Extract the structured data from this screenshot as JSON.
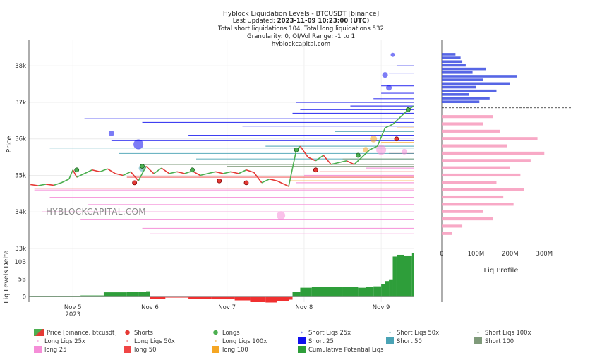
{
  "header": {
    "title": "Hyblock Liquidation Levels - BTCUSDT [binance]",
    "updated_prefix": "Last Updated: ",
    "updated_value": "2023-11-09 10:23:00 (UTC)",
    "totals": "Total short liquidations 104, Total long liquidations 532",
    "granularity": "Granularity: 0, OI/Vol Range: -1 to 1",
    "site": "hyblockcapital.com"
  },
  "watermark": "HYBLOCKCAPITAL.COM",
  "colors": {
    "price_up": "#4caf50",
    "price_down": "#e53935",
    "short25": "#1010ee",
    "short50": "#4aa3b5",
    "short100": "#7f9a7a",
    "long25": "#f58ed8",
    "long50": "#f04545",
    "long100": "#f5a623",
    "delta_pos": "#2e9e3a",
    "delta_neg": "#f03030",
    "profile_short": "#3a4be0",
    "profile_long": "#f7a0c0"
  },
  "chart_data": [
    {
      "type": "line",
      "name": "price",
      "title": "Hyblock Liquidation Levels - BTCUSDT [binance]",
      "ylabel": "Price",
      "ylim": [
        33000,
        38700
      ],
      "xlim": [
        -0.57,
        4.42
      ],
      "y_ticks": [
        33000,
        34000,
        35000,
        36000,
        37000,
        38000
      ],
      "y_tick_labels": [
        "33k",
        "34k",
        "35k",
        "36k",
        "37k",
        "38k"
      ],
      "x_ticks": [
        0,
        1,
        2,
        3,
        4
      ],
      "x_tick_labels": [
        "Nov 5",
        "Nov 6",
        "Nov 7",
        "Nov 8",
        "Nov 9"
      ],
      "x_year_label": "2023",
      "series": [
        {
          "name": "Price [binance, btcusdt]",
          "x": [
            -0.55,
            -0.45,
            -0.35,
            -0.25,
            -0.15,
            -0.05,
            0.0,
            0.05,
            0.15,
            0.25,
            0.35,
            0.45,
            0.55,
            0.65,
            0.75,
            0.85,
            0.95,
            1.05,
            1.15,
            1.25,
            1.35,
            1.45,
            1.55,
            1.65,
            1.75,
            1.85,
            1.95,
            2.05,
            2.15,
            2.25,
            2.35,
            2.45,
            2.55,
            2.65,
            2.75,
            2.8,
            2.85,
            2.9,
            2.95,
            3.05,
            3.15,
            3.25,
            3.35,
            3.45,
            3.55,
            3.65,
            3.75,
            3.85,
            3.95,
            4.05,
            4.15,
            4.25,
            4.35,
            4.42
          ],
          "y": [
            34750,
            34720,
            34760,
            34730,
            34800,
            34900,
            35150,
            34950,
            35050,
            35150,
            35100,
            35180,
            35050,
            35000,
            35100,
            34850,
            35250,
            35050,
            35200,
            35050,
            35100,
            35050,
            35120,
            35000,
            35050,
            35100,
            35050,
            35100,
            35050,
            35150,
            35080,
            34800,
            34900,
            34850,
            34750,
            34700,
            35200,
            35700,
            35800,
            35500,
            35400,
            35550,
            35300,
            35350,
            35400,
            35300,
            35500,
            35700,
            35800,
            36300,
            36400,
            36600,
            36800,
            36900
          ]
        }
      ],
      "short_levels": [
        {
          "bucket": "Short 25",
          "y": 36550,
          "x_start": 0.15
        },
        {
          "bucket": "Short 25",
          "y": 36450,
          "x_start": 0.9
        },
        {
          "bucket": "Short 25",
          "y": 36350,
          "x_start": 2.2
        },
        {
          "bucket": "Short 25",
          "y": 36100,
          "x_start": 1.5
        },
        {
          "bucket": "Short 25",
          "y": 35950,
          "x_start": 0.5
        },
        {
          "bucket": "Short 25",
          "y": 36700,
          "x_start": 2.85
        },
        {
          "bucket": "Short 25",
          "y": 36800,
          "x_start": 2.95
        },
        {
          "bucket": "Short 25",
          "y": 36900,
          "x_start": 3.6
        },
        {
          "bucket": "Short 25",
          "y": 37000,
          "x_start": 2.9
        },
        {
          "bucket": "Short 25",
          "y": 37100,
          "x_start": 3.9
        },
        {
          "bucket": "Short 25",
          "y": 37250,
          "x_start": 4.0
        },
        {
          "bucket": "Short 25",
          "y": 37450,
          "x_start": 4.0
        },
        {
          "bucket": "Short 25",
          "y": 37800,
          "x_start": 4.1
        },
        {
          "bucket": "Short 25",
          "y": 38000,
          "x_start": 4.2
        },
        {
          "bucket": "Short 50",
          "y": 35750,
          "x_start": -0.3
        },
        {
          "bucket": "Short 50",
          "y": 35600,
          "x_start": 0.6
        },
        {
          "bucket": "Short 50",
          "y": 35450,
          "x_start": 1.6
        },
        {
          "bucket": "Short 50",
          "y": 35800,
          "x_start": 2.5
        },
        {
          "bucket": "Short 50",
          "y": 36200,
          "x_start": 3.4
        },
        {
          "bucket": "Short 100",
          "y": 35300,
          "x_start": 0.9
        },
        {
          "bucket": "Short 100",
          "y": 35250,
          "x_start": 2.0
        }
      ],
      "long_levels": [
        {
          "bucket": "long 25",
          "y": 34600,
          "x_start": -0.5
        },
        {
          "bucket": "long 25",
          "y": 34400,
          "x_start": -0.3
        },
        {
          "bucket": "long 25",
          "y": 34200,
          "x_start": 0.2
        },
        {
          "bucket": "long 25",
          "y": 34000,
          "x_start": -0.4
        },
        {
          "bucket": "long 25",
          "y": 33800,
          "x_start": 0.1
        },
        {
          "bucket": "long 25",
          "y": 33550,
          "x_start": 0.9
        },
        {
          "bucket": "long 25",
          "y": 33400,
          "x_start": 1.0
        },
        {
          "bucket": "long 25",
          "y": 34800,
          "x_start": 2.9
        },
        {
          "bucket": "long 25",
          "y": 35000,
          "x_start": 3.0
        },
        {
          "bucket": "long 25",
          "y": 35200,
          "x_start": 3.8
        },
        {
          "bucket": "long 50",
          "y": 34650,
          "x_start": -0.5
        },
        {
          "bucket": "long 50",
          "y": 34950,
          "x_start": 0.7
        },
        {
          "bucket": "long 50",
          "y": 35100,
          "x_start": 3.2
        },
        {
          "bucket": "long 50",
          "y": 35600,
          "x_start": 4.1
        },
        {
          "bucket": "long 100",
          "y": 34850,
          "x_start": 2.8
        },
        {
          "bucket": "long 100",
          "y": 35450,
          "x_start": 3.5
        },
        {
          "bucket": "long 100",
          "y": 35900,
          "x_start": 4.0
        },
        {
          "bucket": "long 100",
          "y": 36300,
          "x_start": 4.2
        }
      ],
      "short_markers": [
        {
          "x": 1.9,
          "y": 34850,
          "size": 3
        },
        {
          "x": 2.25,
          "y": 34800,
          "size": 3
        },
        {
          "x": 0.8,
          "y": 34800,
          "size": 3
        },
        {
          "x": 3.15,
          "y": 35150,
          "size": 3
        },
        {
          "x": 4.2,
          "y": 36000,
          "size": 3
        }
      ],
      "long_markers": [
        {
          "x": 0.05,
          "y": 35150,
          "size": 3
        },
        {
          "x": 0.9,
          "y": 35250,
          "size": 3
        },
        {
          "x": 1.55,
          "y": 35150,
          "size": 3
        },
        {
          "x": 2.9,
          "y": 35700,
          "size": 3
        },
        {
          "x": 3.7,
          "y": 35550,
          "size": 3
        },
        {
          "x": 4.35,
          "y": 36800,
          "size": 3
        }
      ],
      "bubbles": [
        {
          "bucket": "Short 25",
          "x": 0.85,
          "y": 35850,
          "size": 7
        },
        {
          "bucket": "Short 25",
          "x": 0.5,
          "y": 36150,
          "size": 4
        },
        {
          "bucket": "Short 25",
          "x": 4.05,
          "y": 37750,
          "size": 4
        },
        {
          "bucket": "Short 25",
          "x": 4.1,
          "y": 37400,
          "size": 4
        },
        {
          "bucket": "Short 25",
          "x": 4.15,
          "y": 38300,
          "size": 3
        },
        {
          "bucket": "Short 50",
          "x": 0.9,
          "y": 35200,
          "size": 5
        },
        {
          "bucket": "long 25",
          "x": 2.7,
          "y": 33900,
          "size": 6
        },
        {
          "bucket": "long 25",
          "x": 4.0,
          "y": 35700,
          "size": 7
        },
        {
          "bucket": "long 25",
          "x": 4.3,
          "y": 35650,
          "size": 4
        },
        {
          "bucket": "long 100",
          "x": 3.9,
          "y": 36000,
          "size": 5
        },
        {
          "bucket": "long 100",
          "x": 3.8,
          "y": 35700,
          "size": 4
        }
      ]
    },
    {
      "type": "area",
      "name": "delta",
      "ylabel": "Liq Levels Delta",
      "ylim": [
        -1500000000,
        13000000000
      ],
      "y_ticks": [
        0,
        5000000000,
        10000000000
      ],
      "y_tick_labels": [
        "0",
        "5B",
        "10B"
      ],
      "series": [
        {
          "name": "Cumulative Potential Liqs",
          "x": [
            -0.55,
            -0.2,
            0.1,
            0.4,
            0.7,
            0.85,
            0.95,
            1.0,
            1.2,
            1.5,
            1.8,
            2.1,
            2.3,
            2.5,
            2.65,
            2.8,
            2.85,
            2.95,
            3.1,
            3.3,
            3.5,
            3.7,
            3.8,
            3.9,
            4.0,
            4.05,
            4.1,
            4.15,
            4.2,
            4.3,
            4.4
          ],
          "y": [
            200000000,
            250000000,
            400000000,
            1300000000,
            1400000000,
            1500000000,
            1600000000,
            -500000000,
            -200000000,
            -600000000,
            -700000000,
            -1000000000,
            -1500000000,
            -1600000000,
            -1300000000,
            -800000000,
            1500000000,
            2600000000,
            2800000000,
            2900000000,
            2800000000,
            2600000000,
            2900000000,
            3000000000,
            3600000000,
            4500000000,
            5000000000,
            11500000000,
            12000000000,
            11800000000,
            12400000000
          ]
        }
      ]
    },
    {
      "type": "bar",
      "name": "profile",
      "xlabel": "Liq Profile",
      "xlim": [
        0,
        380000000
      ],
      "x_ticks": [
        0,
        100000000,
        200000000,
        300000000
      ],
      "x_tick_labels": [
        "0",
        "100M",
        "200M",
        "300M"
      ],
      "current_price": 36850,
      "series": [
        {
          "name": "short",
          "price": [
            37000,
            37100,
            37200,
            37300,
            37400,
            37500,
            37600,
            37700,
            37800,
            37900,
            38000,
            38100,
            38200,
            38300
          ],
          "value": [
            110000000,
            140000000,
            80000000,
            160000000,
            100000000,
            200000000,
            120000000,
            220000000,
            90000000,
            130000000,
            70000000,
            60000000,
            55000000,
            40000000
          ]
        },
        {
          "name": "long",
          "price": [
            33400,
            33600,
            33800,
            34000,
            34200,
            34400,
            34600,
            34800,
            35000,
            35200,
            35400,
            35600,
            35800,
            36000,
            36200,
            36400,
            36600
          ],
          "value": [
            30000000,
            60000000,
            150000000,
            120000000,
            210000000,
            180000000,
            240000000,
            160000000,
            230000000,
            200000000,
            260000000,
            300000000,
            190000000,
            280000000,
            170000000,
            120000000,
            150000000
          ]
        }
      ]
    }
  ],
  "legend": [
    {
      "label": "Price [binance, btcusdt]",
      "type": "price"
    },
    {
      "label": "Shorts",
      "type": "dot",
      "color": "#e53935"
    },
    {
      "label": "Longs",
      "type": "dot",
      "color": "#4caf50"
    },
    {
      "label": "Short Liqs 25x",
      "type": "tiny",
      "color": "#8a92e8"
    },
    {
      "label": "Short Liqs 50x",
      "type": "tiny",
      "color": "#8ac0c9"
    },
    {
      "label": "Short Liqs 100x",
      "type": "tiny",
      "color": "#a8b8a6"
    },
    {
      "label": "Long Liqs 25x",
      "type": "tiny",
      "color": "#f7b9e4"
    },
    {
      "label": "Long Liqs 50x",
      "type": "tiny",
      "color": "#f59a9a"
    },
    {
      "label": "Long Liqs 100x",
      "type": "tiny",
      "color": "#f7cc7f"
    },
    {
      "label": "Short 25",
      "type": "box",
      "color": "#1010ee"
    },
    {
      "label": "Short 50",
      "type": "box",
      "color": "#4aa3b5"
    },
    {
      "label": "Short 100",
      "type": "box",
      "color": "#7f9a7a"
    },
    {
      "label": "long 25",
      "type": "box",
      "color": "#f58ed8"
    },
    {
      "label": "long 50",
      "type": "box",
      "color": "#f04545"
    },
    {
      "label": "long 100",
      "type": "box",
      "color": "#f5a623"
    },
    {
      "label": "Cumulative Potential Liqs",
      "type": "box",
      "color": "#2e9e3a"
    }
  ]
}
